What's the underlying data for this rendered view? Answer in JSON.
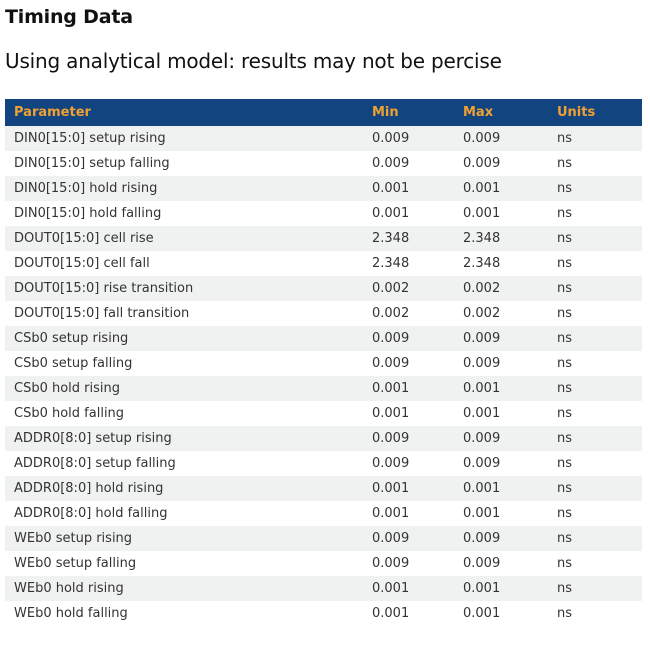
{
  "page": {
    "title": "Timing Data",
    "subtitle": "Using analytical model: results may not be percise"
  },
  "colors": {
    "header_bg": "#12447f",
    "header_text": "#f0a133",
    "row_alt_bg": "#f0f2f1",
    "row_text": "#333333"
  },
  "table": {
    "columns": [
      "Parameter",
      "Min",
      "Max",
      "Units"
    ],
    "rows": [
      {
        "param": "DIN0[15:0] setup rising",
        "min": "0.009",
        "max": "0.009",
        "units": "ns"
      },
      {
        "param": "DIN0[15:0] setup falling",
        "min": "0.009",
        "max": "0.009",
        "units": "ns"
      },
      {
        "param": "DIN0[15:0] hold rising",
        "min": "0.001",
        "max": "0.001",
        "units": "ns"
      },
      {
        "param": "DIN0[15:0] hold falling",
        "min": "0.001",
        "max": "0.001",
        "units": "ns"
      },
      {
        "param": "DOUT0[15:0] cell rise",
        "min": "2.348",
        "max": "2.348",
        "units": "ns"
      },
      {
        "param": "DOUT0[15:0] cell fall",
        "min": "2.348",
        "max": "2.348",
        "units": "ns"
      },
      {
        "param": "DOUT0[15:0] rise transition",
        "min": "0.002",
        "max": "0.002",
        "units": "ns"
      },
      {
        "param": "DOUT0[15:0] fall transition",
        "min": "0.002",
        "max": "0.002",
        "units": "ns"
      },
      {
        "param": "CSb0 setup rising",
        "min": "0.009",
        "max": "0.009",
        "units": "ns"
      },
      {
        "param": "CSb0 setup falling",
        "min": "0.009",
        "max": "0.009",
        "units": "ns"
      },
      {
        "param": "CSb0 hold rising",
        "min": "0.001",
        "max": "0.001",
        "units": "ns"
      },
      {
        "param": "CSb0 hold falling",
        "min": "0.001",
        "max": "0.001",
        "units": "ns"
      },
      {
        "param": "ADDR0[8:0] setup rising",
        "min": "0.009",
        "max": "0.009",
        "units": "ns"
      },
      {
        "param": "ADDR0[8:0] setup falling",
        "min": "0.009",
        "max": "0.009",
        "units": "ns"
      },
      {
        "param": "ADDR0[8:0] hold rising",
        "min": "0.001",
        "max": "0.001",
        "units": "ns"
      },
      {
        "param": "ADDR0[8:0] hold falling",
        "min": "0.001",
        "max": "0.001",
        "units": "ns"
      },
      {
        "param": "WEb0 setup rising",
        "min": "0.009",
        "max": "0.009",
        "units": "ns"
      },
      {
        "param": "WEb0 setup falling",
        "min": "0.009",
        "max": "0.009",
        "units": "ns"
      },
      {
        "param": "WEb0 hold rising",
        "min": "0.001",
        "max": "0.001",
        "units": "ns"
      },
      {
        "param": "WEb0 hold falling",
        "min": "0.001",
        "max": "0.001",
        "units": "ns"
      }
    ]
  }
}
